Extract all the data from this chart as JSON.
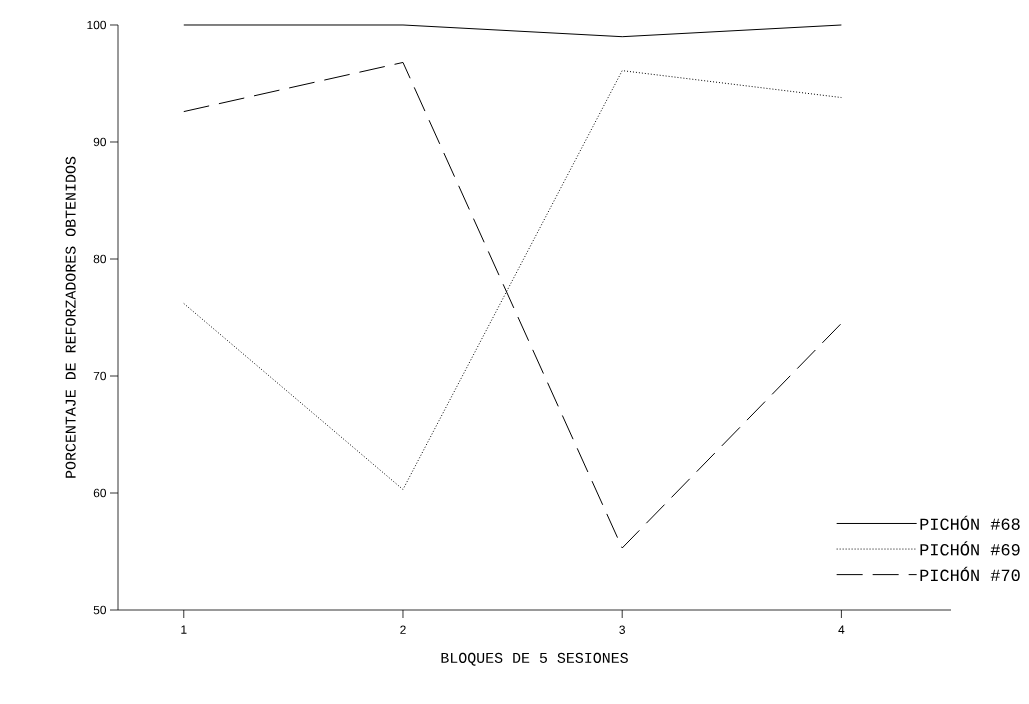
{
  "chart_data": {
    "type": "line",
    "xlabel": "BLOQUES DE 5 SESIONES",
    "ylabel": "PORCENTAJE DE REFORZADORES OBTENIDOS",
    "x": [
      1,
      2,
      3,
      4
    ],
    "xlim": [
      0.7,
      4.5
    ],
    "xticks": [
      1,
      2,
      3,
      4
    ],
    "ylim": [
      50,
      100
    ],
    "yticks": [
      50,
      60,
      70,
      80,
      90,
      100
    ],
    "grid": false,
    "legend": "bottom right",
    "marker": "none",
    "series": [
      {
        "name": "PICHÓN #68",
        "color": "#000000",
        "line_style": "solid",
        "values": [
          100,
          100,
          99,
          100
        ]
      },
      {
        "name": "PICHÓN #69",
        "color": "#000000",
        "line_style": "dotted",
        "values": [
          76.2,
          60.3,
          96.1,
          93.8
        ]
      },
      {
        "name": "PICHÓN #70",
        "color": "#000000",
        "line_style": "dashed",
        "values": [
          92.6,
          96.8,
          55.3,
          74.5
        ]
      }
    ]
  }
}
